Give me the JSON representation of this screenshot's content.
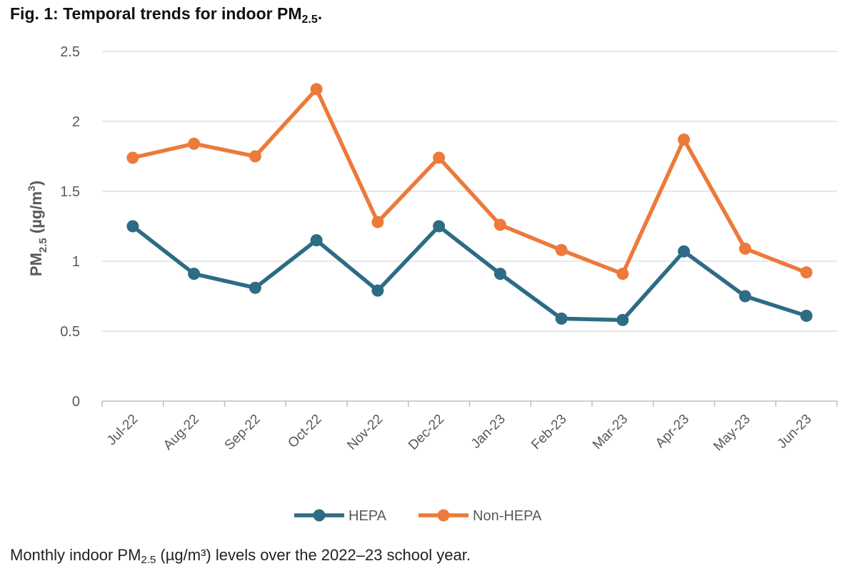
{
  "figure": {
    "title_prefix": "Fig. 1: Temporal trends for indoor PM",
    "title_sub": "2.5",
    "title_suffix": ".",
    "caption_prefix": "Monthly indoor PM",
    "caption_sub": "2.5",
    "caption_suffix": " (µg/m³) levels over the 2022–23 school year."
  },
  "chart_data": {
    "type": "line",
    "title": "Temporal trends for indoor PM2.5",
    "categories": [
      "Jul-22",
      "Aug-22",
      "Sep-22",
      "Oct-22",
      "Nov-22",
      "Dec-22",
      "Jan-23",
      "Feb-23",
      "Mar-23",
      "Apr-23",
      "May-23",
      "Jun-23"
    ],
    "series": [
      {
        "name": "HEPA",
        "color": "#2e6b85",
        "values": [
          1.25,
          0.91,
          0.81,
          1.15,
          0.79,
          1.25,
          0.91,
          0.59,
          0.58,
          1.07,
          0.75,
          0.61
        ]
      },
      {
        "name": "Non-HEPA",
        "color": "#ec7a3a",
        "values": [
          1.74,
          1.84,
          1.75,
          2.23,
          1.28,
          1.74,
          1.26,
          1.08,
          0.91,
          1.87,
          1.09,
          0.92
        ]
      }
    ],
    "ylabel_prefix": "PM",
    "ylabel_sub": "2.5",
    "ylabel_unit_open": " (µg/m",
    "ylabel_sup": "3",
    "ylabel_close": ")",
    "yticks": [
      "0",
      "0.5",
      "1",
      "1.5",
      "2",
      "2.5"
    ],
    "ylim": [
      0,
      2.5
    ],
    "grid": true,
    "legend_position": "bottom"
  }
}
